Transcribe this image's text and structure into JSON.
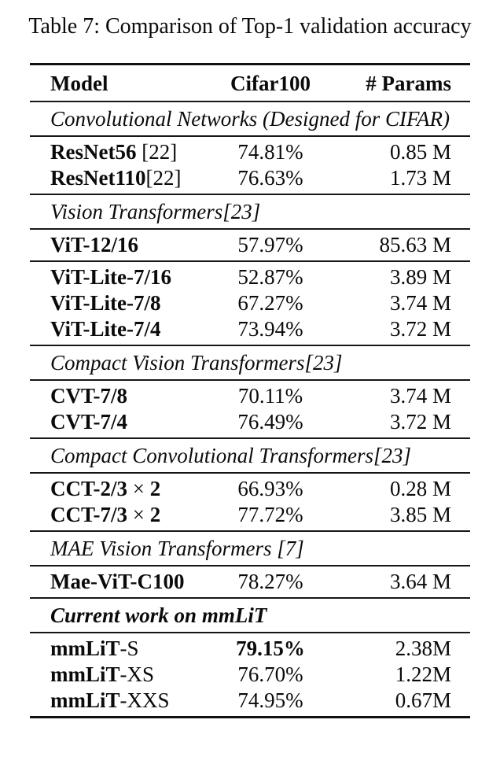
{
  "title": "Table 7: Comparison of Top-1 validation accuracy",
  "colors": {
    "text": "#0b0b0b",
    "background": "#ffffff",
    "rule": "#161616"
  },
  "columns": [
    "Model",
    "Cifar100",
    "# Params"
  ],
  "sections": [
    {
      "label": "Convolutional Networks (Designed for CIFAR)",
      "bold": false,
      "groups": [
        [
          {
            "model": [
              {
                "t": "ResNet56",
                "b": true
              },
              {
                "t": " [22]",
                "b": false
              }
            ],
            "acc": {
              "t": "74.81%",
              "b": false
            },
            "params": "0.85 M"
          },
          {
            "model": [
              {
                "t": "ResNet110",
                "b": true
              },
              {
                "t": "[22]",
                "b": false
              }
            ],
            "acc": {
              "t": "76.63%",
              "b": false
            },
            "params": "1.73 M"
          }
        ]
      ]
    },
    {
      "label": "Vision Transformers[23]",
      "bold": false,
      "groups": [
        [
          {
            "model": [
              {
                "t": "ViT-12/16",
                "b": true
              }
            ],
            "acc": {
              "t": "57.97%",
              "b": false
            },
            "params": "85.63 M"
          }
        ],
        [
          {
            "model": [
              {
                "t": "ViT-Lite-7/16",
                "b": true
              }
            ],
            "acc": {
              "t": "52.87%",
              "b": false
            },
            "params": "3.89 M"
          },
          {
            "model": [
              {
                "t": "ViT-Lite-7/8",
                "b": true
              }
            ],
            "acc": {
              "t": "67.27%",
              "b": false
            },
            "params": "3.74 M"
          },
          {
            "model": [
              {
                "t": "ViT-Lite-7/4",
                "b": true
              }
            ],
            "acc": {
              "t": "73.94%",
              "b": false
            },
            "params": "3.72 M"
          }
        ]
      ]
    },
    {
      "label": "Compact Vision Transformers[23]",
      "bold": false,
      "groups": [
        [
          {
            "model": [
              {
                "t": "CVT-7/8",
                "b": true
              }
            ],
            "acc": {
              "t": "70.11%",
              "b": false
            },
            "params": "3.74 M"
          },
          {
            "model": [
              {
                "t": "CVT-7/4",
                "b": true
              }
            ],
            "acc": {
              "t": "76.49%",
              "b": false
            },
            "params": "3.72 M"
          }
        ]
      ]
    },
    {
      "label": "Compact Convolutional Transformers[23]",
      "bold": false,
      "groups": [
        [
          {
            "model": [
              {
                "t": "CCT-2/3",
                "b": true
              },
              {
                "t": " × ",
                "b": false
              },
              {
                "t": "2",
                "b": true
              }
            ],
            "acc": {
              "t": "66.93%",
              "b": false
            },
            "params": "0.28 M"
          },
          {
            "model": [
              {
                "t": "CCT-7/3",
                "b": true
              },
              {
                "t": " × ",
                "b": false
              },
              {
                "t": "2",
                "b": true
              }
            ],
            "acc": {
              "t": "77.72%",
              "b": false
            },
            "params": "3.85 M"
          }
        ]
      ]
    },
    {
      "label": "MAE Vision Transformers [7]",
      "bold": false,
      "groups": [
        [
          {
            "model": [
              {
                "t": "Mae-ViT-C100",
                "b": true
              }
            ],
            "acc": {
              "t": "78.27%",
              "b": false
            },
            "params": "3.64 M"
          }
        ]
      ]
    },
    {
      "label": "Current work on mmLiT",
      "bold": true,
      "groups": [
        [
          {
            "model": [
              {
                "t": "mmLiT",
                "b": true
              },
              {
                "t": "-S",
                "b": false
              }
            ],
            "acc": {
              "t": "79.15%",
              "b": true
            },
            "params": "2.38M"
          },
          {
            "model": [
              {
                "t": "mmLiT",
                "b": true
              },
              {
                "t": "-XS",
                "b": false
              }
            ],
            "acc": {
              "t": "76.70%",
              "b": false
            },
            "params": "1.22M"
          },
          {
            "model": [
              {
                "t": "mmLiT",
                "b": true
              },
              {
                "t": "-XXS",
                "b": false
              }
            ],
            "acc": {
              "t": "74.95%",
              "b": false
            },
            "params": "0.67M"
          }
        ]
      ]
    }
  ]
}
